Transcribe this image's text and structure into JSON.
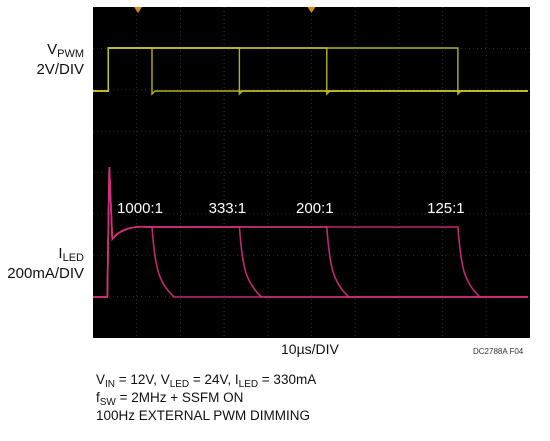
{
  "chart_data": {
    "type": "line",
    "title": "",
    "channels": [
      {
        "name": "VPWM",
        "label_main": "V",
        "label_sub": "PWM",
        "scale": "2V/DIV",
        "color": "#c4c42a"
      },
      {
        "name": "ILED",
        "label_main": "I",
        "label_sub": "LED",
        "scale": "200mA/DIV",
        "color": "#d0307a"
      }
    ],
    "time_scale": "10µs/DIV",
    "x_unit": "µs",
    "xlim": [
      0,
      100
    ],
    "divisions": {
      "x": 10,
      "y": 8
    },
    "pwm_edge_us": 3.5,
    "pulses": [
      {
        "ratio": "1000:1",
        "width_us": 10,
        "peak_mA": 330
      },
      {
        "ratio": "333:1",
        "width_us": 30,
        "peak_mA": 330
      },
      {
        "ratio": "200:1",
        "width_us": 50,
        "peak_mA": 330
      },
      {
        "ratio": "125:1",
        "width_us": 80,
        "peak_mA": 330
      }
    ],
    "figure_id": "DC2788A F04",
    "conditions": {
      "line1": {
        "v_in": "V",
        "v_in_sub": "IN",
        "v_in_val": " = 12V, ",
        "v_led": "V",
        "v_led_sub": "LED",
        "v_led_val": " = 24V, ",
        "i_led": "I",
        "i_led_sub": "LED",
        "i_led_val": " = 330mA"
      },
      "line2": {
        "f": "f",
        "f_sub": "SW",
        "f_val": " = 2MHz + SSFM ON"
      },
      "line3": "100Hz EXTERNAL PWM DIMMING"
    }
  }
}
